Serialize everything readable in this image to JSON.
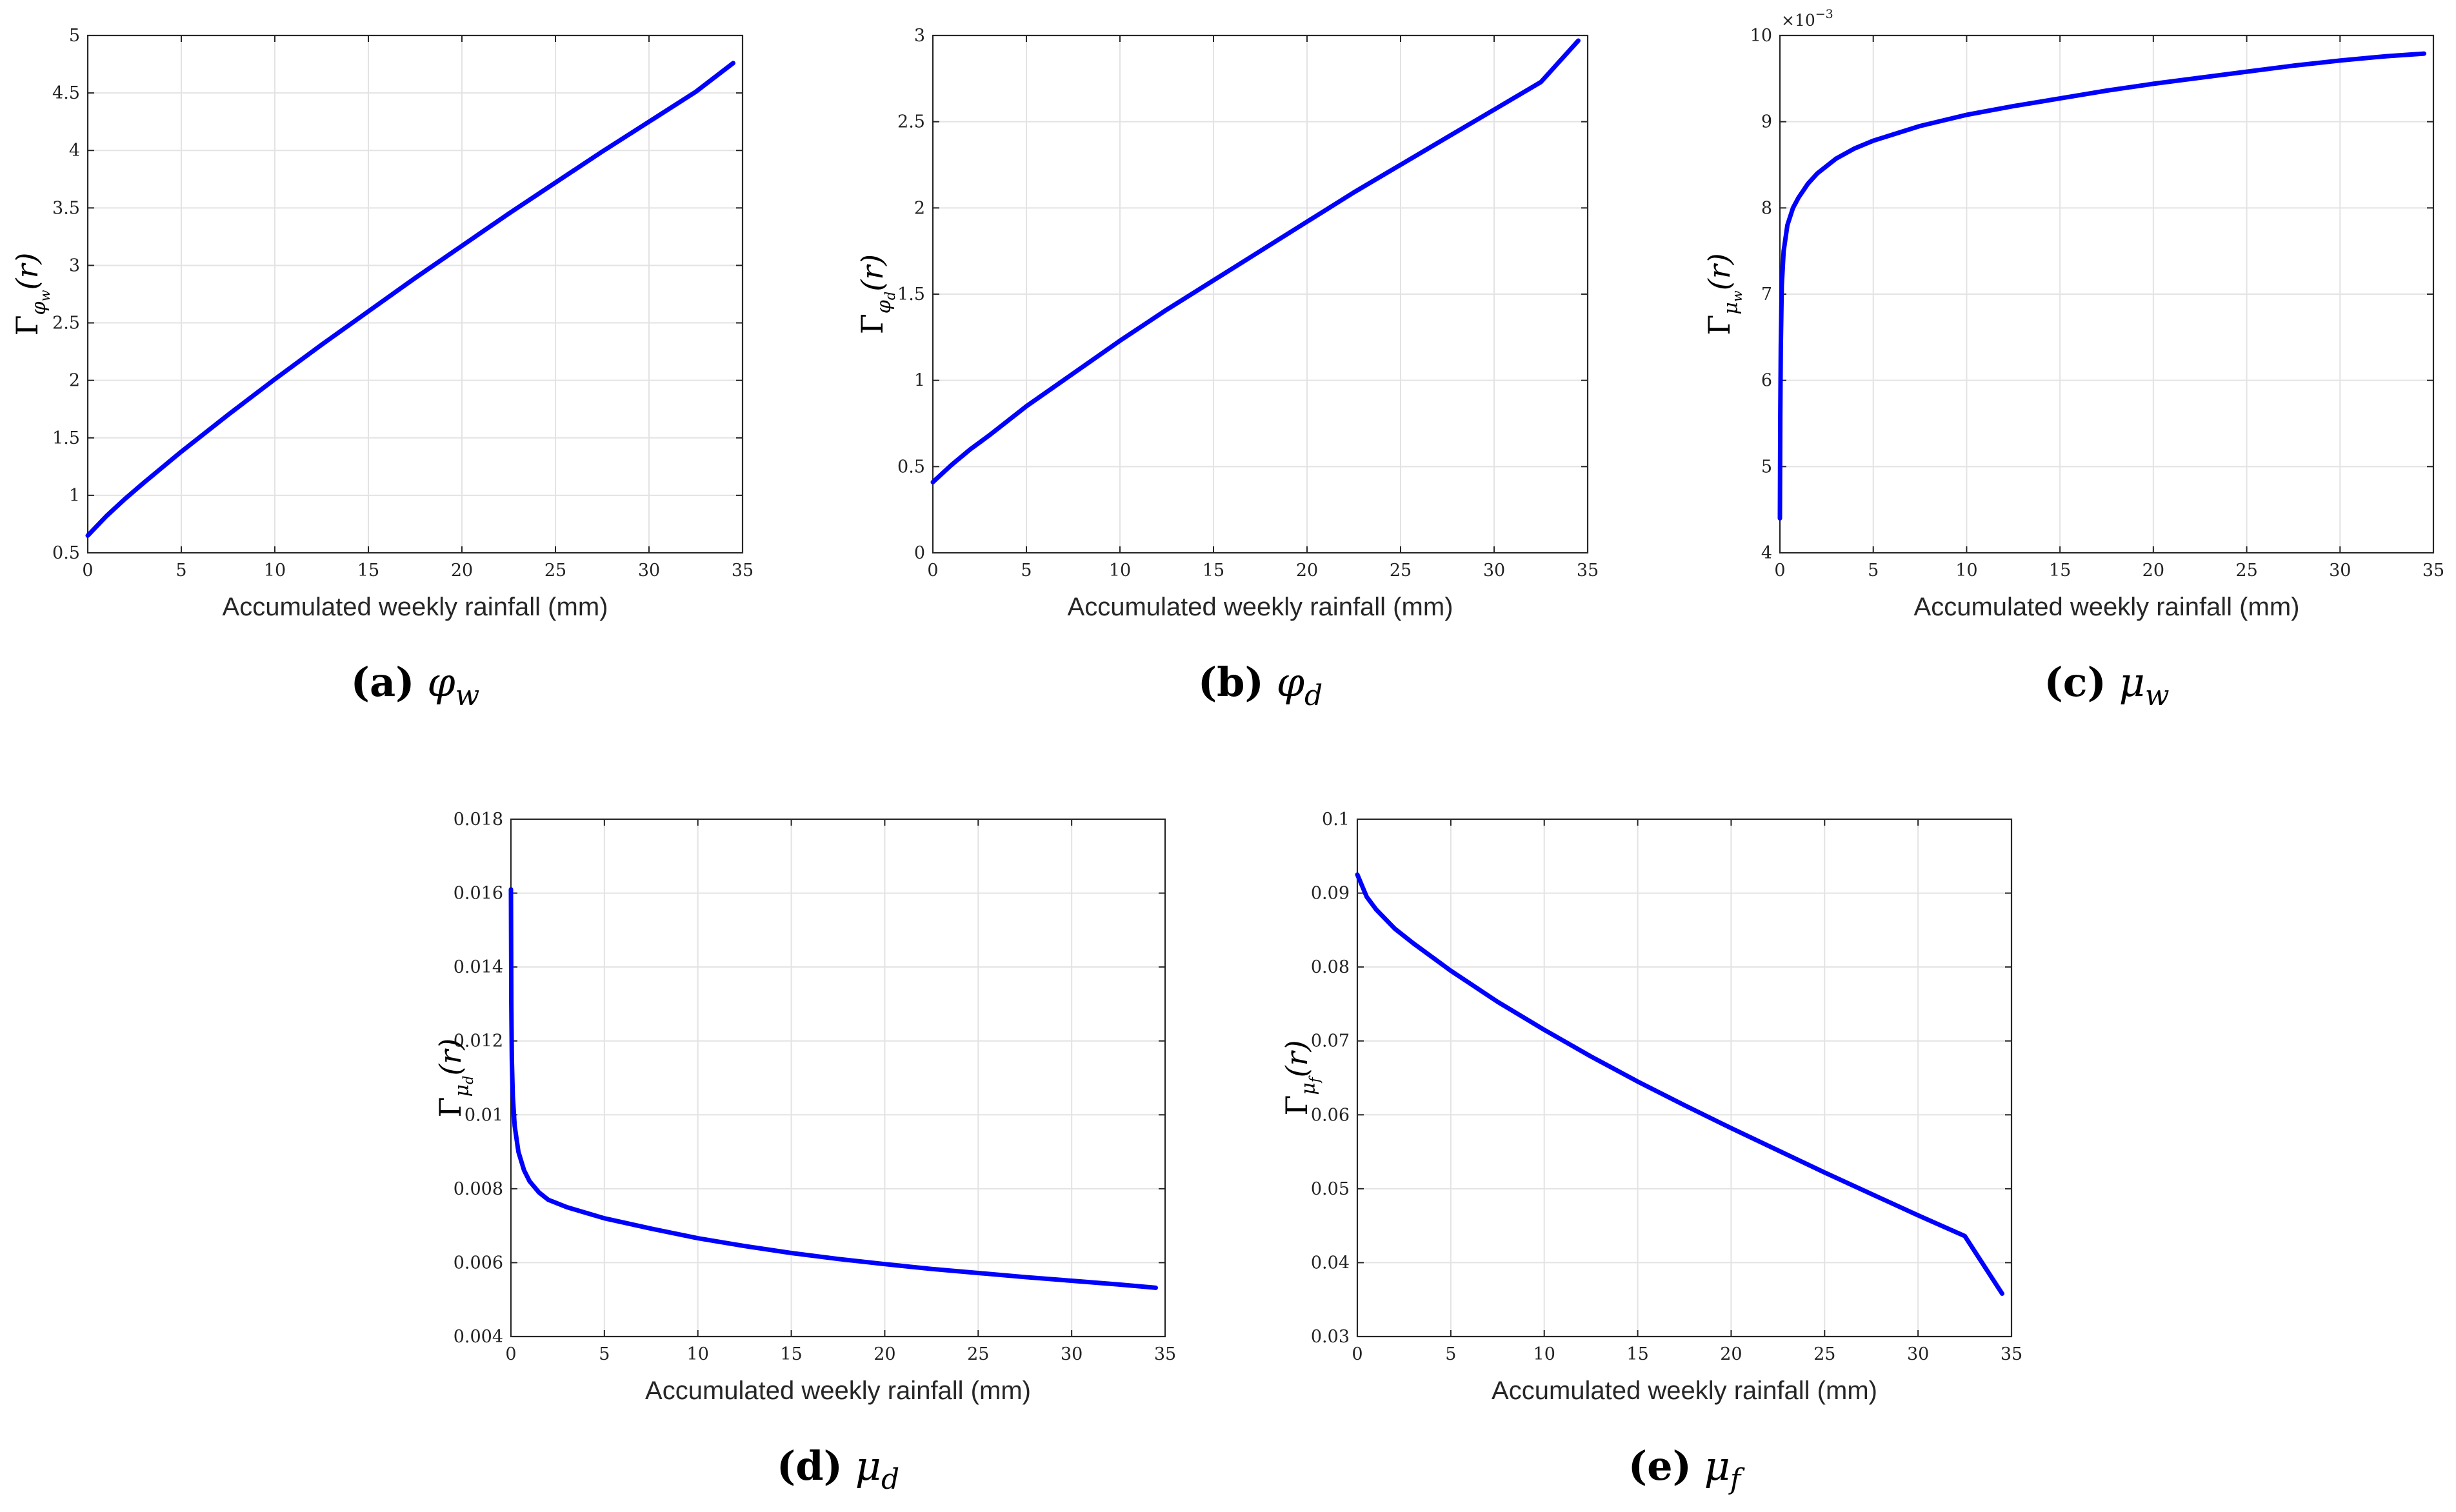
{
  "chart_data": [
    {
      "type": "line",
      "panel": "a",
      "caption_label": "(a)",
      "caption_symbol": "φ",
      "caption_sub": "w",
      "ylabel_main": "Γ",
      "ylabel_sub1": "φ",
      "ylabel_sub2": "w",
      "ylabel_arg": "(r)",
      "xlabel": "Accumulated weekly rainfall (mm)",
      "xlim": [
        0,
        35
      ],
      "ylim": [
        0.5,
        5
      ],
      "xticks": [
        "0",
        "5",
        "10",
        "15",
        "20",
        "25",
        "30",
        "35"
      ],
      "yticks": [
        "0.5",
        "1",
        "1.5",
        "2",
        "2.5",
        "3",
        "3.5",
        "4",
        "4.5",
        "5"
      ],
      "line_color": "#0000ff",
      "grid": true,
      "series": [
        {
          "x": [
            0,
            1,
            2,
            3,
            5,
            7.5,
            10,
            12.5,
            15,
            17.5,
            20,
            22.5,
            25,
            27.5,
            30,
            32.5,
            34.5
          ],
          "values": [
            0.65,
            0.82,
            0.97,
            1.11,
            1.38,
            1.7,
            2.01,
            2.31,
            2.6,
            2.89,
            3.17,
            3.45,
            3.72,
            3.99,
            4.25,
            4.51,
            4.76
          ]
        }
      ]
    },
    {
      "type": "line",
      "panel": "b",
      "caption_label": "(b)",
      "caption_symbol": "φ",
      "caption_sub": "d",
      "ylabel_main": "Γ",
      "ylabel_sub1": "φ",
      "ylabel_sub2": "d",
      "ylabel_arg": "(r)",
      "xlabel": "Accumulated weekly rainfall (mm)",
      "xlim": [
        0,
        35
      ],
      "ylim": [
        0,
        3
      ],
      "xticks": [
        "0",
        "5",
        "10",
        "15",
        "20",
        "25",
        "30",
        "35"
      ],
      "yticks": [
        "0",
        "0.5",
        "1",
        "1.5",
        "2",
        "2.5",
        "3"
      ],
      "line_color": "#0000ff",
      "grid": true,
      "series": [
        {
          "x": [
            0,
            1,
            2,
            3,
            5,
            7.5,
            10,
            12.5,
            15,
            17.5,
            20,
            22.5,
            25,
            27.5,
            30,
            32.5,
            34.5
          ],
          "values": [
            0.41,
            0.51,
            0.6,
            0.68,
            0.85,
            1.04,
            1.23,
            1.41,
            1.58,
            1.75,
            1.92,
            2.09,
            2.25,
            2.41,
            2.57,
            2.73,
            2.97
          ]
        }
      ]
    },
    {
      "type": "line",
      "panel": "c",
      "caption_label": "(c)",
      "caption_symbol": "μ",
      "caption_sub": "w",
      "ylabel_main": "Γ",
      "ylabel_sub1": "μ",
      "ylabel_sub2": "w",
      "ylabel_arg": "(r)",
      "xlabel": "Accumulated weekly rainfall (mm)",
      "exponent_label": "×10",
      "exponent_power": "−3",
      "xlim": [
        0,
        35
      ],
      "ylim": [
        4,
        10
      ],
      "xticks": [
        "0",
        "5",
        "10",
        "15",
        "20",
        "25",
        "30",
        "35"
      ],
      "yticks": [
        "4",
        "5",
        "6",
        "7",
        "8",
        "9",
        "10"
      ],
      "line_color": "#0000ff",
      "grid": true,
      "series": [
        {
          "x": [
            0,
            0.02,
            0.05,
            0.1,
            0.2,
            0.4,
            0.7,
            1,
            1.5,
            2,
            3,
            4,
            5,
            7.5,
            10,
            12.5,
            15,
            17.5,
            20,
            22.5,
            25,
            27.5,
            30,
            32.5,
            34.5
          ],
          "values": [
            4.4,
            5.6,
            6.4,
            7.1,
            7.5,
            7.8,
            8.0,
            8.12,
            8.28,
            8.4,
            8.57,
            8.69,
            8.78,
            8.95,
            9.08,
            9.18,
            9.27,
            9.36,
            9.44,
            9.51,
            9.58,
            9.65,
            9.71,
            9.76,
            9.79
          ]
        }
      ]
    },
    {
      "type": "line",
      "panel": "d",
      "caption_label": "(d)",
      "caption_symbol": "μ",
      "caption_sub": "d",
      "ylabel_main": "Γ",
      "ylabel_sub1": "μ",
      "ylabel_sub2": "d",
      "ylabel_arg": "(r)",
      "xlabel": "Accumulated weekly rainfall (mm)",
      "xlim": [
        0,
        35
      ],
      "ylim": [
        0.004,
        0.018
      ],
      "xticks": [
        "0",
        "5",
        "10",
        "15",
        "20",
        "25",
        "30",
        "35"
      ],
      "yticks": [
        "0.004",
        "0.006",
        "0.008",
        "0.01",
        "0.012",
        "0.014",
        "0.016",
        "0.018"
      ],
      "line_color": "#0000ff",
      "grid": true,
      "series": [
        {
          "x": [
            0,
            0.02,
            0.05,
            0.1,
            0.2,
            0.4,
            0.7,
            1,
            1.5,
            2,
            3,
            4,
            5,
            7.5,
            10,
            12.5,
            15,
            17.5,
            20,
            22.5,
            25,
            27.5,
            30,
            32.5,
            34.5
          ],
          "values": [
            0.0161,
            0.013,
            0.0115,
            0.0105,
            0.0097,
            0.009,
            0.0085,
            0.0082,
            0.0079,
            0.0077,
            0.0075,
            0.00735,
            0.0072,
            0.00692,
            0.00666,
            0.00645,
            0.00626,
            0.0061,
            0.00596,
            0.00583,
            0.00572,
            0.00561,
            0.00551,
            0.00541,
            0.00532
          ]
        }
      ]
    },
    {
      "type": "line",
      "panel": "e",
      "caption_label": "(e)",
      "caption_symbol": "μ",
      "caption_sub": "f",
      "ylabel_main": "Γ",
      "ylabel_sub1": "μ",
      "ylabel_sub2": "f",
      "ylabel_arg": "(r)",
      "xlabel": "Accumulated weekly rainfall (mm)",
      "xlim": [
        0,
        35
      ],
      "ylim": [
        0.03,
        0.1
      ],
      "xticks": [
        "0",
        "5",
        "10",
        "15",
        "20",
        "25",
        "30",
        "35"
      ],
      "yticks": [
        "0.03",
        "0.04",
        "0.05",
        "0.06",
        "0.07",
        "0.08",
        "0.09",
        "0.1"
      ],
      "line_color": "#0000ff",
      "grid": true,
      "series": [
        {
          "x": [
            0,
            0.5,
            1,
            2,
            3,
            5,
            7.5,
            10,
            12.5,
            15,
            17.5,
            20,
            22.5,
            25,
            27.5,
            30,
            32.5,
            34.5
          ],
          "values": [
            0.0925,
            0.0895,
            0.0878,
            0.0852,
            0.0832,
            0.0795,
            0.0753,
            0.0715,
            0.0679,
            0.0645,
            0.0613,
            0.0582,
            0.0552,
            0.0522,
            0.0493,
            0.0464,
            0.0436,
            0.0358
          ]
        }
      ]
    }
  ]
}
